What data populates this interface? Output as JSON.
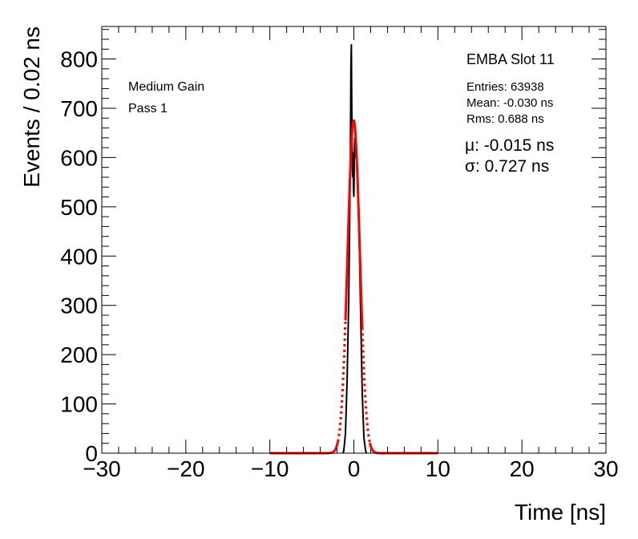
{
  "chart_data": {
    "type": "histogram",
    "xlabel": "Time [ns]",
    "ylabel": "Events / 0.02 ns",
    "xlim": [
      -30,
      30
    ],
    "ylim": [
      0,
      866
    ],
    "x_ticks": [
      -30,
      -20,
      -10,
      0,
      10,
      20,
      30
    ],
    "x_tick_labels": [
      "−30",
      "−20",
      "−10",
      "0",
      "10",
      "20",
      "30"
    ],
    "y_ticks": [
      0,
      100,
      200,
      300,
      400,
      500,
      600,
      700,
      800
    ],
    "y_tick_labels": [
      "0",
      "100",
      "200",
      "300",
      "400",
      "500",
      "600",
      "700",
      "800"
    ],
    "grid": false,
    "annotations": {
      "left": [
        "Medium Gain",
        "Pass 1"
      ],
      "title": "EMBA Slot 11",
      "stats": [
        "Entries: 63938",
        "Mean: -0.030 ns",
        "Rms: 0.688 ns"
      ],
      "fit": [
        "μ: -0.015 ns",
        "σ: 0.727 ns"
      ]
    },
    "histogram": {
      "color": "#000000",
      "x": [
        -1.2,
        -1.0,
        -0.8,
        -0.6,
        -0.5,
        -0.4,
        -0.35,
        -0.3,
        -0.25,
        -0.2,
        -0.15,
        -0.1,
        -0.05,
        0.0,
        0.05,
        0.1,
        0.15,
        0.2,
        0.3,
        0.4,
        0.5,
        0.6,
        0.7,
        0.8,
        1.0,
        1.2,
        1.4
      ],
      "y": [
        5,
        40,
        150,
        320,
        470,
        640,
        780,
        830,
        700,
        620,
        560,
        610,
        540,
        520,
        590,
        640,
        600,
        630,
        620,
        580,
        540,
        460,
        380,
        290,
        120,
        30,
        5
      ]
    },
    "fit": {
      "color": "#ff0000",
      "mu": -0.015,
      "sigma": 0.727,
      "peak": 675,
      "solid_range": [
        -1.0,
        1.0
      ],
      "dashed_range": [
        -1.9,
        1.9
      ],
      "line_range": [
        -10,
        10
      ]
    }
  }
}
